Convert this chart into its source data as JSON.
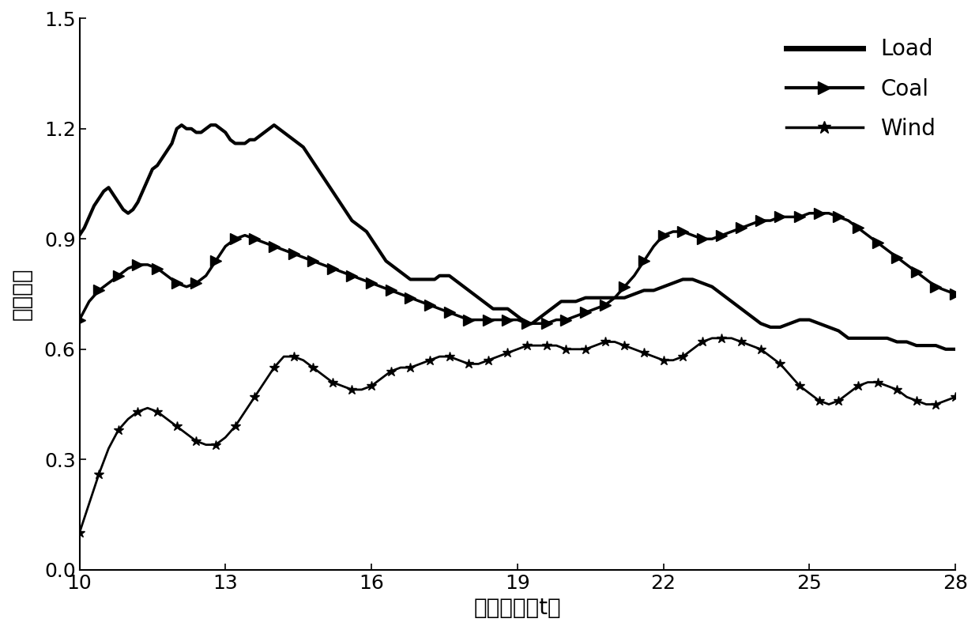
{
  "title": "",
  "xlabel": "迟延时间（t）",
  "ylabel": "互信息値",
  "xlim": [
    10,
    28
  ],
  "ylim": [
    0.0,
    1.5
  ],
  "yticks": [
    0.0,
    0.3,
    0.6,
    0.9,
    1.2,
    1.5
  ],
  "xticks": [
    10,
    13,
    16,
    19,
    22,
    25,
    28
  ],
  "load_x": [
    10.0,
    10.1,
    10.2,
    10.3,
    10.4,
    10.5,
    10.6,
    10.7,
    10.8,
    10.9,
    11.0,
    11.1,
    11.2,
    11.3,
    11.4,
    11.5,
    11.6,
    11.7,
    11.8,
    11.9,
    12.0,
    12.1,
    12.2,
    12.3,
    12.4,
    12.5,
    12.6,
    12.7,
    12.8,
    12.9,
    13.0,
    13.1,
    13.2,
    13.3,
    13.4,
    13.5,
    13.6,
    13.7,
    13.8,
    13.9,
    14.0,
    14.1,
    14.2,
    14.3,
    14.4,
    14.5,
    14.6,
    14.7,
    14.8,
    14.9,
    15.0,
    15.1,
    15.2,
    15.3,
    15.4,
    15.5,
    15.6,
    15.7,
    15.8,
    15.9,
    16.0,
    16.1,
    16.2,
    16.3,
    16.4,
    16.5,
    16.6,
    16.7,
    16.8,
    16.9,
    17.0,
    17.1,
    17.2,
    17.3,
    17.4,
    17.5,
    17.6,
    17.7,
    17.8,
    17.9,
    18.0,
    18.1,
    18.2,
    18.3,
    18.4,
    18.5,
    18.6,
    18.7,
    18.8,
    18.9,
    19.0,
    19.1,
    19.2,
    19.3,
    19.4,
    19.5,
    19.6,
    19.7,
    19.8,
    19.9,
    20.0,
    20.2,
    20.4,
    20.6,
    20.8,
    21.0,
    21.2,
    21.4,
    21.6,
    21.8,
    22.0,
    22.2,
    22.4,
    22.6,
    22.8,
    23.0,
    23.2,
    23.4,
    23.6,
    23.8,
    24.0,
    24.2,
    24.4,
    24.6,
    24.8,
    25.0,
    25.2,
    25.4,
    25.6,
    25.8,
    26.0,
    26.2,
    26.4,
    26.6,
    26.8,
    27.0,
    27.2,
    27.4,
    27.6,
    27.8,
    28.0
  ],
  "load_y": [
    0.91,
    0.93,
    0.96,
    0.99,
    1.01,
    1.03,
    1.04,
    1.02,
    1.0,
    0.98,
    0.97,
    0.98,
    1.0,
    1.03,
    1.06,
    1.09,
    1.1,
    1.12,
    1.14,
    1.16,
    1.2,
    1.21,
    1.2,
    1.2,
    1.19,
    1.19,
    1.2,
    1.21,
    1.21,
    1.2,
    1.19,
    1.17,
    1.16,
    1.16,
    1.16,
    1.17,
    1.17,
    1.18,
    1.19,
    1.2,
    1.21,
    1.2,
    1.19,
    1.18,
    1.17,
    1.16,
    1.15,
    1.13,
    1.11,
    1.09,
    1.07,
    1.05,
    1.03,
    1.01,
    0.99,
    0.97,
    0.95,
    0.94,
    0.93,
    0.92,
    0.9,
    0.88,
    0.86,
    0.84,
    0.83,
    0.82,
    0.81,
    0.8,
    0.79,
    0.79,
    0.79,
    0.79,
    0.79,
    0.79,
    0.8,
    0.8,
    0.8,
    0.79,
    0.78,
    0.77,
    0.76,
    0.75,
    0.74,
    0.73,
    0.72,
    0.71,
    0.71,
    0.71,
    0.71,
    0.7,
    0.69,
    0.68,
    0.67,
    0.67,
    0.68,
    0.69,
    0.7,
    0.71,
    0.72,
    0.73,
    0.73,
    0.73,
    0.74,
    0.74,
    0.74,
    0.74,
    0.74,
    0.75,
    0.76,
    0.76,
    0.77,
    0.78,
    0.79,
    0.79,
    0.78,
    0.77,
    0.75,
    0.73,
    0.71,
    0.69,
    0.67,
    0.66,
    0.66,
    0.67,
    0.68,
    0.68,
    0.67,
    0.66,
    0.65,
    0.63,
    0.63,
    0.63,
    0.63,
    0.63,
    0.62,
    0.62,
    0.61,
    0.61,
    0.61,
    0.6,
    0.6
  ],
  "coal_x": [
    10.0,
    10.2,
    10.4,
    10.6,
    10.8,
    11.0,
    11.2,
    11.4,
    11.6,
    11.8,
    12.0,
    12.2,
    12.4,
    12.6,
    12.8,
    13.0,
    13.2,
    13.4,
    13.6,
    13.8,
    14.0,
    14.2,
    14.4,
    14.6,
    14.8,
    15.0,
    15.2,
    15.4,
    15.6,
    15.8,
    16.0,
    16.2,
    16.4,
    16.6,
    16.8,
    17.0,
    17.2,
    17.4,
    17.6,
    17.8,
    18.0,
    18.2,
    18.4,
    18.6,
    18.8,
    19.0,
    19.2,
    19.4,
    19.6,
    19.8,
    20.0,
    20.2,
    20.4,
    20.6,
    20.8,
    21.0,
    21.2,
    21.4,
    21.6,
    21.8,
    22.0,
    22.2,
    22.4,
    22.6,
    22.8,
    23.0,
    23.2,
    23.4,
    23.6,
    23.8,
    24.0,
    24.2,
    24.4,
    24.6,
    24.8,
    25.0,
    25.2,
    25.4,
    25.6,
    25.8,
    26.0,
    26.2,
    26.4,
    26.6,
    26.8,
    27.0,
    27.2,
    27.4,
    27.6,
    27.8,
    28.0
  ],
  "coal_y": [
    0.68,
    0.73,
    0.76,
    0.78,
    0.8,
    0.82,
    0.83,
    0.83,
    0.82,
    0.8,
    0.78,
    0.77,
    0.78,
    0.8,
    0.84,
    0.88,
    0.9,
    0.91,
    0.9,
    0.89,
    0.88,
    0.87,
    0.86,
    0.85,
    0.84,
    0.83,
    0.82,
    0.81,
    0.8,
    0.79,
    0.78,
    0.77,
    0.76,
    0.75,
    0.74,
    0.73,
    0.72,
    0.71,
    0.7,
    0.69,
    0.68,
    0.68,
    0.68,
    0.68,
    0.68,
    0.68,
    0.67,
    0.67,
    0.67,
    0.68,
    0.68,
    0.69,
    0.7,
    0.71,
    0.72,
    0.74,
    0.77,
    0.8,
    0.84,
    0.88,
    0.91,
    0.92,
    0.92,
    0.91,
    0.9,
    0.9,
    0.91,
    0.92,
    0.93,
    0.94,
    0.95,
    0.95,
    0.96,
    0.96,
    0.96,
    0.97,
    0.97,
    0.97,
    0.96,
    0.95,
    0.93,
    0.91,
    0.89,
    0.87,
    0.85,
    0.83,
    0.81,
    0.79,
    0.77,
    0.76,
    0.75
  ],
  "wind_x": [
    10.0,
    10.2,
    10.4,
    10.6,
    10.8,
    11.0,
    11.2,
    11.4,
    11.6,
    11.8,
    12.0,
    12.2,
    12.4,
    12.6,
    12.8,
    13.0,
    13.2,
    13.4,
    13.6,
    13.8,
    14.0,
    14.2,
    14.4,
    14.6,
    14.8,
    15.0,
    15.2,
    15.4,
    15.6,
    15.8,
    16.0,
    16.2,
    16.4,
    16.6,
    16.8,
    17.0,
    17.2,
    17.4,
    17.6,
    17.8,
    18.0,
    18.2,
    18.4,
    18.6,
    18.8,
    19.0,
    19.2,
    19.4,
    19.6,
    19.8,
    20.0,
    20.2,
    20.4,
    20.6,
    20.8,
    21.0,
    21.2,
    21.4,
    21.6,
    21.8,
    22.0,
    22.2,
    22.4,
    22.6,
    22.8,
    23.0,
    23.2,
    23.4,
    23.6,
    23.8,
    24.0,
    24.2,
    24.4,
    24.6,
    24.8,
    25.0,
    25.2,
    25.4,
    25.6,
    25.8,
    26.0,
    26.2,
    26.4,
    26.6,
    26.8,
    27.0,
    27.2,
    27.4,
    27.6,
    27.8,
    28.0
  ],
  "wind_y": [
    0.1,
    0.18,
    0.26,
    0.33,
    0.38,
    0.41,
    0.43,
    0.44,
    0.43,
    0.41,
    0.39,
    0.37,
    0.35,
    0.34,
    0.34,
    0.36,
    0.39,
    0.43,
    0.47,
    0.51,
    0.55,
    0.58,
    0.58,
    0.57,
    0.55,
    0.53,
    0.51,
    0.5,
    0.49,
    0.49,
    0.5,
    0.52,
    0.54,
    0.55,
    0.55,
    0.56,
    0.57,
    0.58,
    0.58,
    0.57,
    0.56,
    0.56,
    0.57,
    0.58,
    0.59,
    0.6,
    0.61,
    0.61,
    0.61,
    0.61,
    0.6,
    0.6,
    0.6,
    0.61,
    0.62,
    0.62,
    0.61,
    0.6,
    0.59,
    0.58,
    0.57,
    0.57,
    0.58,
    0.6,
    0.62,
    0.63,
    0.63,
    0.63,
    0.62,
    0.61,
    0.6,
    0.58,
    0.56,
    0.53,
    0.5,
    0.48,
    0.46,
    0.45,
    0.46,
    0.48,
    0.5,
    0.51,
    0.51,
    0.5,
    0.49,
    0.47,
    0.46,
    0.45,
    0.45,
    0.46,
    0.47
  ],
  "line_color": "#000000",
  "load_lw": 3.0,
  "coal_lw": 2.5,
  "wind_lw": 2.0,
  "background_color": "#ffffff",
  "legend_labels": [
    "Load",
    "Coal",
    "Wind"
  ],
  "xlabel_fontsize": 20,
  "ylabel_fontsize": 20,
  "tick_fontsize": 18,
  "legend_fontsize": 20
}
